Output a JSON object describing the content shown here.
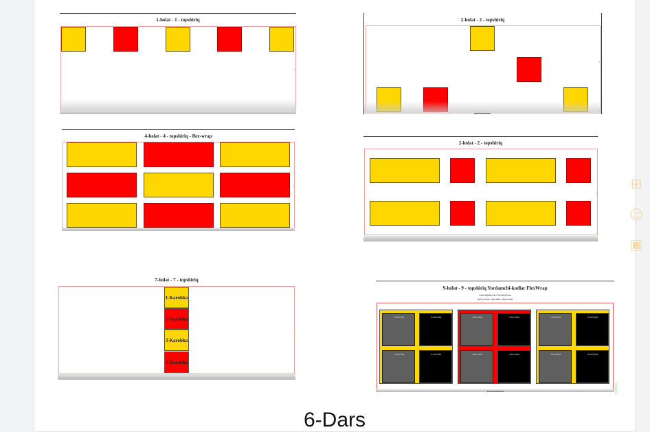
{
  "shots": {
    "s1": {
      "title": "1-holat - 1 - topshiriq"
    },
    "s2": {
      "title": "2-holat - 2 - topshiriq"
    },
    "s3": {
      "title": "4-holat - 4 - topshiriq - flex-wrap"
    },
    "s4": {
      "title": "2-holat - 2 - topshiriq"
    },
    "s5": {
      "title": "7-holat - 7 - topshiriq",
      "boxes": [
        "1-Karobka",
        "2-Karobka",
        "3-Karobka",
        "4-Karobka"
      ]
    },
    "s6": {
      "title": "9-holat - 9 - topshiriq Yordamchi-kodlar FlexWrap",
      "sub1": "Lorem impsum dolor Flex Align Rows",
      "sub2": "justify-content / align-items / align-content",
      "cell_labels": [
        "1-Karobka",
        "2-Karobka",
        "3-Karobka",
        "4-Karobka"
      ]
    }
  },
  "caption": "6-Dars",
  "sidebar": {
    "icons": [
      "add-comment-icon",
      "emoji-icon",
      "suggest-image-icon"
    ]
  },
  "colors": {
    "yellow": "#ffd700",
    "red": "#ff0000",
    "gray": "#5f5f5f",
    "black": "#000000"
  }
}
